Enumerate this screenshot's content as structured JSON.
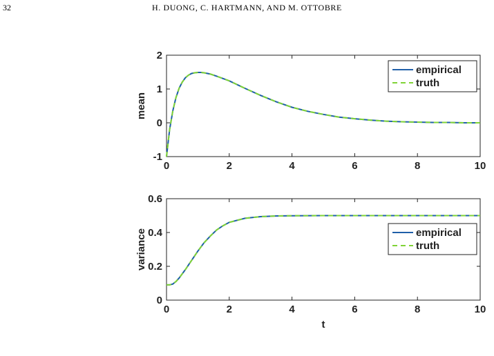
{
  "page": {
    "number": "32",
    "running_head": "H. DUONG, C. HARTMANN, AND M. OTTOBRE"
  },
  "colors": {
    "empirical": "#1f5fa8",
    "truth": "#7fd335",
    "axes": "#222222"
  },
  "chart_data": [
    {
      "type": "line",
      "title": "",
      "xlabel": "",
      "ylabel": "mean",
      "xlim": [
        0,
        10
      ],
      "ylim": [
        -1,
        2
      ],
      "xticks": [
        "0",
        "2",
        "4",
        "6",
        "8",
        "10"
      ],
      "yticks": [
        "-1",
        "0",
        "1",
        "2"
      ],
      "grid": false,
      "legend_position": "top-right",
      "x": [
        0,
        0.1,
        0.2,
        0.3,
        0.4,
        0.5,
        0.6,
        0.7,
        0.8,
        0.9,
        1.0,
        1.1,
        1.2,
        1.4,
        1.6,
        1.8,
        2.0,
        2.5,
        3.0,
        3.5,
        4.0,
        4.5,
        5.0,
        5.5,
        6.0,
        6.5,
        7.0,
        7.5,
        8.0,
        8.5,
        9.0,
        9.5,
        10.0
      ],
      "series": [
        {
          "name": "empirical",
          "style": "solid",
          "values": [
            -1.0,
            -0.2,
            0.35,
            0.74,
            1.02,
            1.2,
            1.33,
            1.41,
            1.46,
            1.48,
            1.49,
            1.49,
            1.48,
            1.44,
            1.38,
            1.31,
            1.24,
            1.02,
            0.81,
            0.62,
            0.46,
            0.34,
            0.25,
            0.17,
            0.12,
            0.08,
            0.05,
            0.03,
            0.02,
            0.01,
            0.01,
            0.0,
            0.0
          ]
        },
        {
          "name": "truth",
          "style": "dashed",
          "values": [
            -1.0,
            -0.2,
            0.35,
            0.74,
            1.02,
            1.2,
            1.33,
            1.41,
            1.46,
            1.48,
            1.49,
            1.49,
            1.48,
            1.44,
            1.38,
            1.31,
            1.24,
            1.02,
            0.81,
            0.62,
            0.46,
            0.34,
            0.25,
            0.17,
            0.12,
            0.08,
            0.05,
            0.03,
            0.02,
            0.01,
            0.01,
            0.0,
            0.0
          ]
        }
      ]
    },
    {
      "type": "line",
      "title": "",
      "xlabel": "t",
      "ylabel": "variance",
      "xlim": [
        0,
        10
      ],
      "ylim": [
        0,
        0.6
      ],
      "xticks": [
        "0",
        "2",
        "4",
        "6",
        "8",
        "10"
      ],
      "yticks": [
        "0",
        "0.2",
        "0.4",
        "0.6"
      ],
      "grid": false,
      "legend_position": "right",
      "x": [
        0,
        0.1,
        0.2,
        0.3,
        0.4,
        0.5,
        0.6,
        0.8,
        1.0,
        1.2,
        1.4,
        1.6,
        1.8,
        2.0,
        2.5,
        3.0,
        3.5,
        4.0,
        5.0,
        6.0,
        7.0,
        8.0,
        9.0,
        10.0
      ],
      "series": [
        {
          "name": "empirical",
          "style": "solid",
          "values": [
            0.09,
            0.09,
            0.095,
            0.11,
            0.13,
            0.155,
            0.18,
            0.235,
            0.29,
            0.34,
            0.38,
            0.415,
            0.44,
            0.46,
            0.484,
            0.494,
            0.498,
            0.499,
            0.5,
            0.5,
            0.5,
            0.5,
            0.5,
            0.5
          ]
        },
        {
          "name": "truth",
          "style": "dashed",
          "values": [
            0.09,
            0.09,
            0.095,
            0.11,
            0.13,
            0.155,
            0.18,
            0.235,
            0.29,
            0.34,
            0.38,
            0.415,
            0.44,
            0.46,
            0.484,
            0.494,
            0.498,
            0.499,
            0.5,
            0.5,
            0.5,
            0.5,
            0.5,
            0.5
          ]
        }
      ]
    }
  ]
}
